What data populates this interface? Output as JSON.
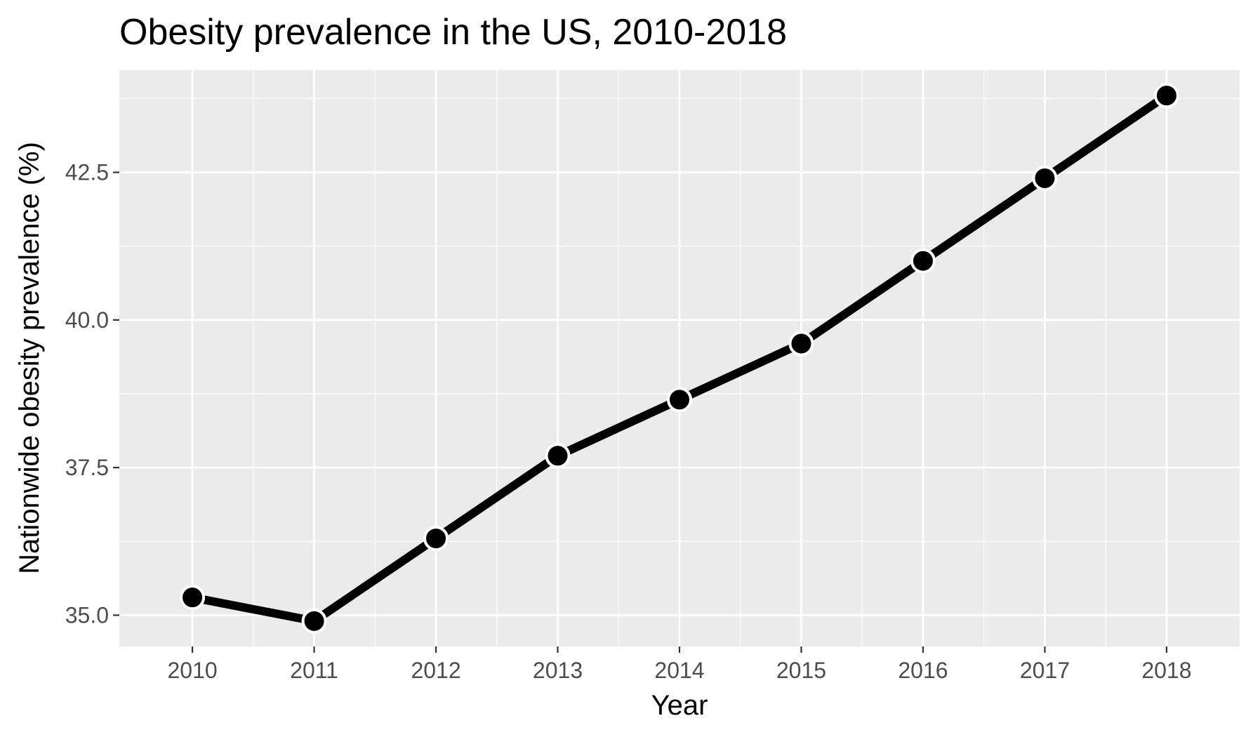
{
  "chart_data": {
    "type": "line",
    "title": "Obesity prevalence in the US, 2010-2018",
    "xlabel": "Year",
    "ylabel": "Nationwide obesity prevalence (%)",
    "x": [
      2010,
      2011,
      2012,
      2013,
      2014,
      2015,
      2016,
      2017,
      2018
    ],
    "x_tick_labels": [
      "2010",
      "2011",
      "2012",
      "2013",
      "2014",
      "2015",
      "2016",
      "2017",
      "2018"
    ],
    "series": [
      {
        "values": [
          35.3,
          34.9,
          36.3,
          37.7,
          38.65,
          39.6,
          41.0,
          42.4,
          43.8
        ]
      }
    ],
    "y_ticks": [
      35.0,
      37.5,
      40.0,
      42.5
    ],
    "y_tick_labels": [
      "35.0",
      "37.5",
      "40.0",
      "42.5"
    ],
    "xlim": [
      2009.4,
      2018.6
    ],
    "ylim": [
      34.47,
      44.23
    ],
    "grid": true,
    "legend": "none",
    "colors": {
      "panel_background": "#ebebeb",
      "grid": "#ffffff",
      "line": "#000000",
      "point_fill": "#000000",
      "point_stroke": "#ffffff",
      "tick_label": "#4d4d4d",
      "tick_mark": "#333333"
    }
  }
}
